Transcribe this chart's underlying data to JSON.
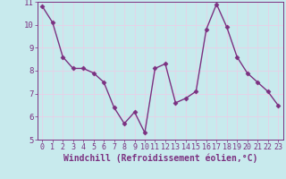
{
  "x": [
    0,
    1,
    2,
    3,
    4,
    5,
    6,
    7,
    8,
    9,
    10,
    11,
    12,
    13,
    14,
    15,
    16,
    17,
    18,
    19,
    20,
    21,
    22,
    23
  ],
  "y": [
    10.8,
    10.1,
    8.6,
    8.1,
    8.1,
    7.9,
    7.5,
    6.4,
    5.7,
    6.2,
    5.3,
    8.1,
    8.3,
    6.6,
    6.8,
    7.1,
    9.8,
    10.9,
    9.9,
    8.6,
    7.9,
    7.5,
    7.1,
    6.5
  ],
  "line_color": "#7b3080",
  "marker": "D",
  "marker_size": 2.5,
  "bg_color": "#c8eaed",
  "grid_color": "#e8d0e8",
  "xlabel": "Windchill (Refroidissement éolien,°C)",
  "ylabel": "",
  "ylim": [
    5,
    11
  ],
  "xlim": [
    -0.5,
    23.5
  ],
  "yticks": [
    5,
    6,
    7,
    8,
    9,
    10,
    11
  ],
  "xticks": [
    0,
    1,
    2,
    3,
    4,
    5,
    6,
    7,
    8,
    9,
    10,
    11,
    12,
    13,
    14,
    15,
    16,
    17,
    18,
    19,
    20,
    21,
    22,
    23
  ],
  "tick_color": "#7b3080",
  "label_color": "#7b3080",
  "axis_color": "#7b3080",
  "xlabel_fontsize": 7,
  "tick_fontsize": 6,
  "line_width": 1.0
}
